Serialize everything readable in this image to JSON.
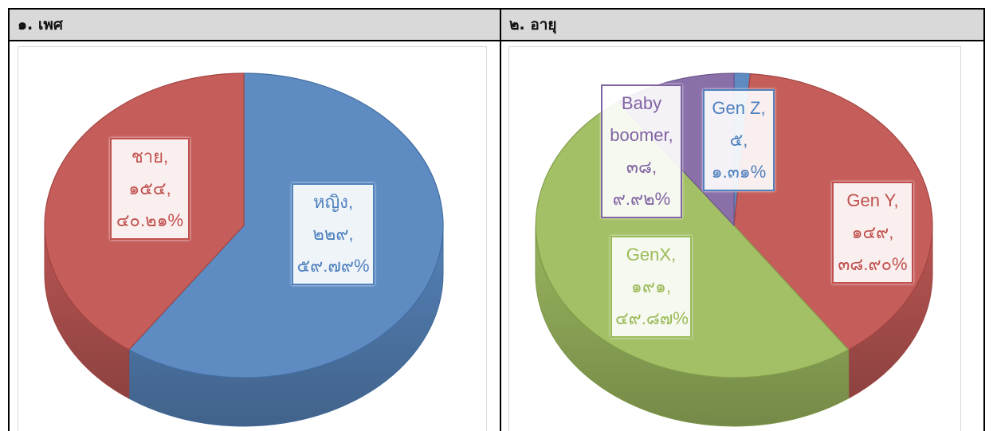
{
  "table": {
    "headers": [
      "๑. เพศ",
      "๒. อายุ"
    ]
  },
  "chart_data": [
    {
      "type": "pie",
      "three_d": true,
      "separator": ",",
      "categories": [
        "หญิง",
        "ชาย"
      ],
      "values": [
        229,
        154
      ],
      "percents": [
        59.79,
        40.21
      ],
      "value_labels": [
        "๒๒๙",
        "๑๕๔"
      ],
      "percent_labels": [
        "๕๙.๗๙%",
        "๔๐.๒๑%"
      ],
      "colors": [
        "#4f81bd",
        "#c0504d"
      ]
    },
    {
      "type": "pie",
      "three_d": true,
      "separator": ",",
      "categories": [
        "Gen Z",
        "Gen Y",
        "GenX",
        "Baby boomer"
      ],
      "values": [
        5,
        149,
        191,
        38
      ],
      "percents": [
        1.31,
        38.9,
        49.87,
        9.92
      ],
      "value_labels": [
        "๕",
        "๑๔๙",
        "๑๙๑",
        "๓๘"
      ],
      "percent_labels": [
        "๑.๓๑%",
        "๓๘.๙๐%",
        "๔๙.๘๗%",
        "๙.๙๒%"
      ],
      "colors": [
        "#4f81bd",
        "#c0504d",
        "#9bbb59",
        "#8064a2"
      ]
    }
  ]
}
